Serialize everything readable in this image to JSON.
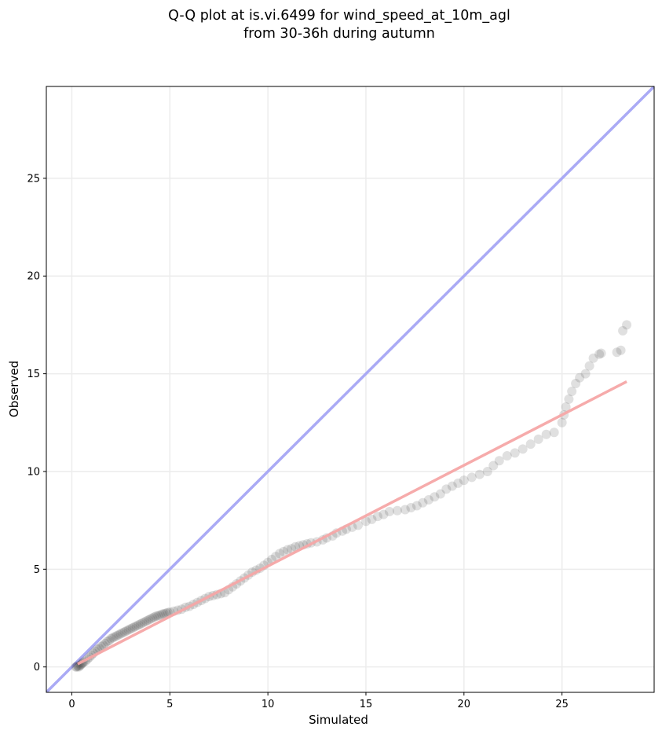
{
  "chart_data": {
    "type": "scatter",
    "title_line1": "Q-Q plot at is.vi.6499 for wind_speed_at_10m_agl",
    "title_line2": "from 30-36h during autumn",
    "xlabel": "Simulated",
    "ylabel": "Observed",
    "xlim": [
      -1.3,
      29.7
    ],
    "ylim": [
      -1.3,
      29.7
    ],
    "xticks": [
      0,
      5,
      10,
      15,
      20,
      25
    ],
    "yticks": [
      0,
      5,
      10,
      15,
      20,
      25
    ],
    "grid": true,
    "legend": "none",
    "reference_line": {
      "label": "1:1",
      "color": "#aaaaf5",
      "from": [
        -1.3,
        -1.3
      ],
      "to": [
        29.7,
        29.7
      ]
    },
    "fit_line": {
      "color": "#f5a7a7",
      "from": [
        0.3,
        0.15
      ],
      "to": [
        28.3,
        14.6
      ]
    },
    "point_color": "#222222",
    "points": [
      [
        0.2,
        0.0
      ],
      [
        0.25,
        0.0
      ],
      [
        0.3,
        0.05
      ],
      [
        0.35,
        0.0
      ],
      [
        0.4,
        0.05
      ],
      [
        0.45,
        0.1
      ],
      [
        0.5,
        0.15
      ],
      [
        0.55,
        0.2
      ],
      [
        0.6,
        0.25
      ],
      [
        0.7,
        0.3
      ],
      [
        0.8,
        0.4
      ],
      [
        0.9,
        0.5
      ],
      [
        1.0,
        0.6
      ],
      [
        1.1,
        0.7
      ],
      [
        1.2,
        0.8
      ],
      [
        1.3,
        0.9
      ],
      [
        1.4,
        0.95
      ],
      [
        1.5,
        1.05
      ],
      [
        1.6,
        1.1
      ],
      [
        1.7,
        1.2
      ],
      [
        1.8,
        1.3
      ],
      [
        1.9,
        1.35
      ],
      [
        2.0,
        1.45
      ],
      [
        2.1,
        1.5
      ],
      [
        2.2,
        1.55
      ],
      [
        2.3,
        1.6
      ],
      [
        2.4,
        1.65
      ],
      [
        2.5,
        1.7
      ],
      [
        2.6,
        1.75
      ],
      [
        2.7,
        1.8
      ],
      [
        2.8,
        1.85
      ],
      [
        2.9,
        1.9
      ],
      [
        3.0,
        1.95
      ],
      [
        3.1,
        2.0
      ],
      [
        3.2,
        2.05
      ],
      [
        3.3,
        2.1
      ],
      [
        3.4,
        2.15
      ],
      [
        3.5,
        2.2
      ],
      [
        3.6,
        2.25
      ],
      [
        3.7,
        2.3
      ],
      [
        3.8,
        2.35
      ],
      [
        3.9,
        2.4
      ],
      [
        4.0,
        2.45
      ],
      [
        4.1,
        2.5
      ],
      [
        4.2,
        2.55
      ],
      [
        4.3,
        2.6
      ],
      [
        4.4,
        2.62
      ],
      [
        4.5,
        2.65
      ],
      [
        4.6,
        2.7
      ],
      [
        4.7,
        2.72
      ],
      [
        4.8,
        2.75
      ],
      [
        4.9,
        2.78
      ],
      [
        5.0,
        2.8
      ],
      [
        5.2,
        2.85
      ],
      [
        5.4,
        2.9
      ],
      [
        5.6,
        2.95
      ],
      [
        5.8,
        3.05
      ],
      [
        6.0,
        3.1
      ],
      [
        6.2,
        3.2
      ],
      [
        6.4,
        3.3
      ],
      [
        6.6,
        3.4
      ],
      [
        6.8,
        3.5
      ],
      [
        7.0,
        3.6
      ],
      [
        7.2,
        3.65
      ],
      [
        7.4,
        3.7
      ],
      [
        7.6,
        3.75
      ],
      [
        7.8,
        3.8
      ],
      [
        8.0,
        3.95
      ],
      [
        8.2,
        4.1
      ],
      [
        8.4,
        4.25
      ],
      [
        8.6,
        4.4
      ],
      [
        8.8,
        4.55
      ],
      [
        9.0,
        4.7
      ],
      [
        9.2,
        4.85
      ],
      [
        9.4,
        4.95
      ],
      [
        9.6,
        5.05
      ],
      [
        9.8,
        5.2
      ],
      [
        10.0,
        5.35
      ],
      [
        10.2,
        5.5
      ],
      [
        10.4,
        5.65
      ],
      [
        10.6,
        5.8
      ],
      [
        10.8,
        5.9
      ],
      [
        11.0,
        6.0
      ],
      [
        11.2,
        6.05
      ],
      [
        11.4,
        6.15
      ],
      [
        11.6,
        6.2
      ],
      [
        11.8,
        6.25
      ],
      [
        12.0,
        6.3
      ],
      [
        12.2,
        6.35
      ],
      [
        12.5,
        6.4
      ],
      [
        12.8,
        6.5
      ],
      [
        13.0,
        6.6
      ],
      [
        13.3,
        6.7
      ],
      [
        13.5,
        6.85
      ],
      [
        13.8,
        6.95
      ],
      [
        14.0,
        7.05
      ],
      [
        14.3,
        7.15
      ],
      [
        14.6,
        7.25
      ],
      [
        15.0,
        7.45
      ],
      [
        15.3,
        7.55
      ],
      [
        15.6,
        7.7
      ],
      [
        15.9,
        7.8
      ],
      [
        16.2,
        7.95
      ],
      [
        16.6,
        8.0
      ],
      [
        17.0,
        8.05
      ],
      [
        17.3,
        8.15
      ],
      [
        17.6,
        8.25
      ],
      [
        17.9,
        8.4
      ],
      [
        18.2,
        8.55
      ],
      [
        18.5,
        8.7
      ],
      [
        18.8,
        8.85
      ],
      [
        19.1,
        9.1
      ],
      [
        19.4,
        9.25
      ],
      [
        19.7,
        9.4
      ],
      [
        20.0,
        9.55
      ],
      [
        20.4,
        9.7
      ],
      [
        20.8,
        9.85
      ],
      [
        21.2,
        10.0
      ],
      [
        21.5,
        10.3
      ],
      [
        21.8,
        10.55
      ],
      [
        22.2,
        10.8
      ],
      [
        22.6,
        10.95
      ],
      [
        23.0,
        11.15
      ],
      [
        23.4,
        11.4
      ],
      [
        23.8,
        11.65
      ],
      [
        24.2,
        11.9
      ],
      [
        24.6,
        12.0
      ],
      [
        25.0,
        12.5
      ],
      [
        25.1,
        12.9
      ],
      [
        25.2,
        13.3
      ],
      [
        25.35,
        13.7
      ],
      [
        25.5,
        14.1
      ],
      [
        25.7,
        14.5
      ],
      [
        25.9,
        14.8
      ],
      [
        26.2,
        15.0
      ],
      [
        26.4,
        15.4
      ],
      [
        26.6,
        15.8
      ],
      [
        26.9,
        16.0
      ],
      [
        27.0,
        16.05
      ],
      [
        27.8,
        16.1
      ],
      [
        28.0,
        16.2
      ],
      [
        28.1,
        17.2
      ],
      [
        28.3,
        17.5
      ]
    ]
  }
}
